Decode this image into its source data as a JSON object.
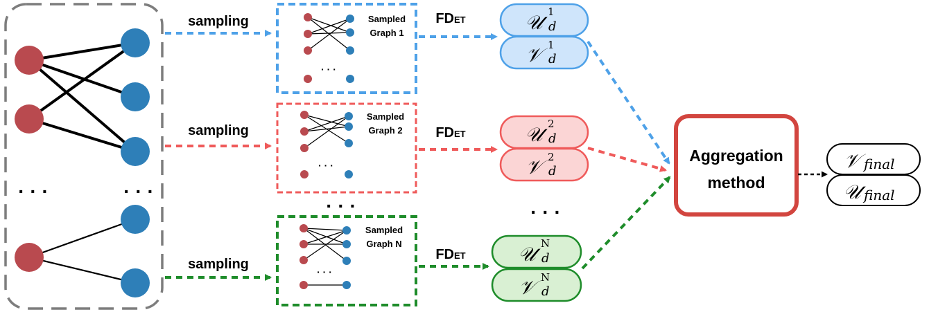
{
  "colors": {
    "red_node": "#b94a4f",
    "blue_node": "#2e7fb8",
    "grey_frame": "#7d7d7d",
    "blue": "#4ea1e8",
    "red": "#ef5a5a",
    "green": "#1e8c2a",
    "blue_fill": "#cfe5fb",
    "red_fill": "#fbd5d5",
    "green_fill": "#d9f0d3",
    "agg_border": "#d2453f"
  },
  "sampling_label": "sampling",
  "fdet": {
    "main": "FD",
    "sub": "ET"
  },
  "ellipsis": "· · ·",
  "graphs": [
    {
      "key": "1",
      "caption_line1": "Sampled",
      "caption_line2": "Graph 1",
      "sup": "1"
    },
    {
      "key": "2",
      "caption_line1": "Sampled",
      "caption_line2": "Graph 2",
      "sup": "2"
    },
    {
      "key": "N",
      "caption_line1": "Sampled",
      "caption_line2": "Graph N",
      "sup": "N"
    }
  ],
  "embeddings": {
    "u_symbol": "𝒰",
    "v_symbol": "𝒱",
    "sub": "d"
  },
  "aggregation": {
    "line1": "Aggregation",
    "line2": "method"
  },
  "final": {
    "v_symbol": "𝒱",
    "u_symbol": "𝒰",
    "sub": "final"
  }
}
